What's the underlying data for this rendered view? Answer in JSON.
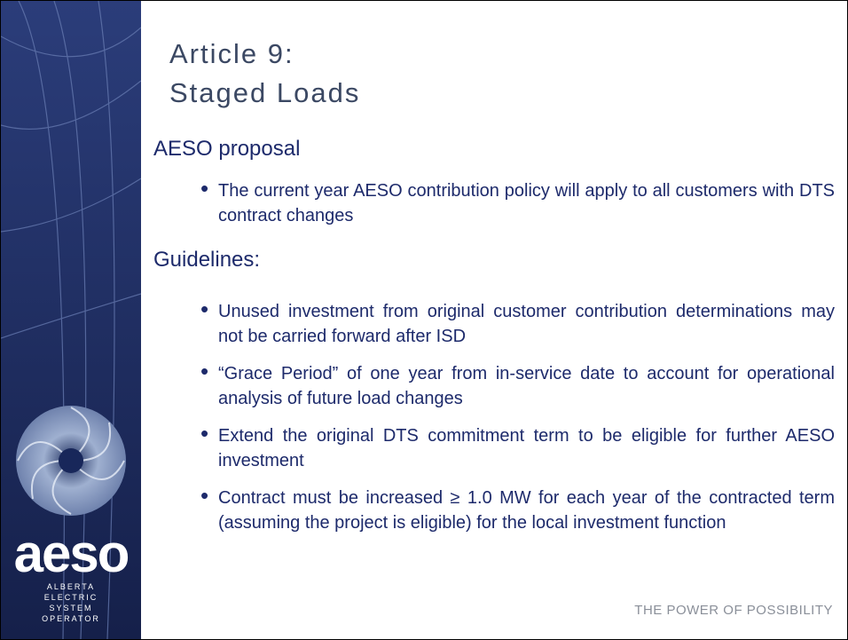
{
  "header": {
    "title": [
      "Article 9:",
      "Staged Loads"
    ]
  },
  "sections": [
    {
      "heading": "AESO proposal",
      "bullets": [
        "The current year AESO contribution policy will apply to all customers with DTS contract changes"
      ]
    },
    {
      "heading": "Guidelines:",
      "bullets": [
        "Unused investment from original customer contribution determinations may not be carried forward after ISD",
        "“Grace Period” of one year from in-service date to account for operational analysis of future load changes",
        "Extend the original DTS commitment term to be eligible for further AESO investment",
        "Contract must be increased ≥ 1.0 MW for each year of the contracted term (assuming the project is eligible) for the local investment function"
      ]
    }
  ],
  "logo": {
    "name": "aeso",
    "lines": [
      "ALBERTA",
      "ELECTRIC",
      "SYSTEM",
      "OPERATOR"
    ]
  },
  "footer": "THE POWER OF POSSIBILITY"
}
